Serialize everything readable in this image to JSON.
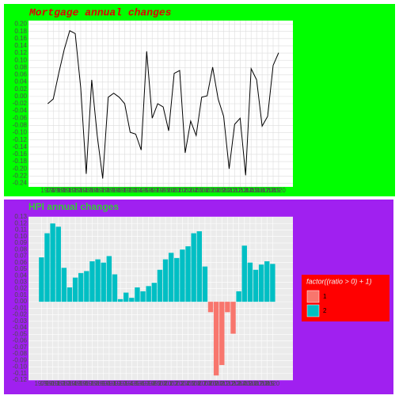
{
  "chart_data": [
    {
      "type": "line",
      "title": "Mortgage annual changes",
      "color": "#000000",
      "grid": true,
      "x": [
        1978,
        1979,
        1980,
        1981,
        1982,
        1983,
        1984,
        1985,
        1986,
        1987,
        1988,
        1989,
        1990,
        1991,
        1992,
        1993,
        1994,
        1995,
        1996,
        1997,
        1998,
        1999,
        2000,
        2001,
        2002,
        2003,
        2004,
        2005,
        2006,
        2007,
        2008,
        2009,
        2010,
        2011,
        2012,
        2013,
        2014,
        2015,
        2016,
        2017,
        2018,
        2019,
        2020
      ],
      "values": [
        -0.02,
        -0.007,
        0.064,
        0.13,
        0.182,
        0.174,
        0.024,
        -0.214,
        0.046,
        -0.108,
        -0.227,
        -0.002,
        0.009,
        -0.002,
        -0.02,
        -0.099,
        -0.104,
        -0.148,
        0.125,
        -0.06,
        -0.02,
        -0.029,
        -0.095,
        0.064,
        0.072,
        -0.156,
        -0.068,
        -0.108,
        -0.002,
        0.002,
        0.081,
        -0.007,
        -0.055,
        -0.2,
        -0.077,
        -0.06,
        -0.218,
        0.077,
        0.046,
        -0.082,
        -0.055,
        0.086,
        0.121
      ],
      "xlim": [
        1974.5,
        2022.6
      ],
      "ylim": [
        -0.25,
        0.21
      ],
      "yticks": [
        -0.24,
        -0.22,
        {
          "value": -0.2,
          "label": "-0.20"
        },
        -0.18,
        -0.16,
        -0.14,
        -0.12,
        {
          "value": -0.1,
          "label": "-0.10"
        },
        -0.08,
        -0.06,
        -0.04,
        -0.02,
        {
          "value": 0,
          "label": "0.00"
        },
        0.02,
        0.04,
        0.06,
        0.08,
        {
          "value": 0.1,
          "label": "0.10"
        },
        0.12,
        0.14,
        0.16,
        0.18,
        {
          "value": 0.2,
          "label": "0.20"
        }
      ]
    },
    {
      "type": "bar",
      "title": "HPI annual changes",
      "grid": true,
      "legend_title": "factor((ratio > 0) + 1)",
      "legend": [
        {
          "name": "1",
          "color": "#F8766D"
        },
        {
          "name": "2",
          "color": "#00BFC4"
        }
      ],
      "x": [
        1979,
        1980,
        1981,
        1982,
        1983,
        1984,
        1985,
        1986,
        1987,
        1988,
        1989,
        1990,
        1991,
        1992,
        1993,
        1994,
        1995,
        1996,
        1997,
        1998,
        1999,
        2000,
        2001,
        2002,
        2003,
        2004,
        2005,
        2006,
        2007,
        2008,
        2009,
        2010,
        2011,
        2012,
        2013,
        2014,
        2015,
        2016,
        2017,
        2018,
        2019,
        2020
      ],
      "values": [
        0.068,
        0.105,
        0.12,
        0.115,
        0.052,
        0.022,
        0.037,
        0.044,
        0.047,
        0.062,
        0.065,
        0.06,
        0.07,
        0.042,
        0.004,
        0.014,
        0.006,
        0.022,
        0.016,
        0.024,
        0.029,
        0.049,
        0.065,
        0.075,
        0.067,
        0.08,
        0.085,
        0.105,
        0.108,
        0.054,
        -0.016,
        -0.113,
        -0.097,
        -0.016,
        -0.049,
        0.016,
        0.086,
        0.06,
        0.049,
        0.057,
        0.062,
        0.058
      ],
      "xlim": [
        1976.7,
        2023.6
      ],
      "ylim": [
        -0.12,
        0.13
      ],
      "yticks": [
        -0.12,
        -0.11,
        {
          "value": -0.1,
          "label": "-0.10"
        },
        -0.09,
        -0.08,
        -0.07,
        -0.06,
        -0.05,
        -0.04,
        -0.03,
        -0.02,
        -0.01,
        {
          "value": 0,
          "label": "0.00"
        },
        0.01,
        0.02,
        0.03,
        0.04,
        0.05,
        0.06,
        0.07,
        0.08,
        0.09,
        {
          "value": 0.1,
          "label": "0.10"
        },
        0.11,
        0.12,
        0.13
      ]
    }
  ]
}
